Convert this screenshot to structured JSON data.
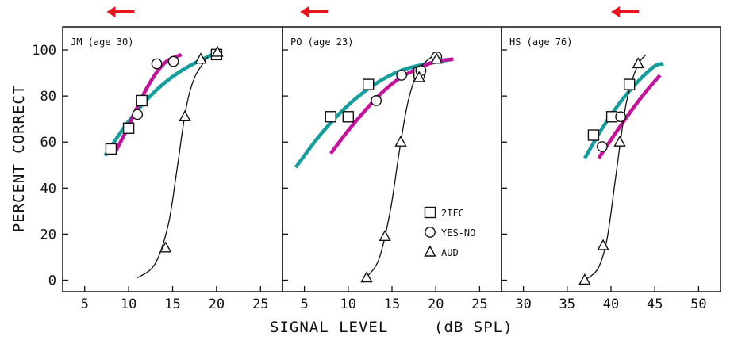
{
  "chart_data": {
    "type": "line",
    "ylabel": "PERCENT CORRECT",
    "xlabel": "SIGNAL LEVEL",
    "xunit": "(dB SPL)",
    "ylim": [
      -5,
      110
    ],
    "yticks": [
      0,
      20,
      40,
      60,
      80,
      100
    ],
    "colors": {
      "teal": "#149e9e",
      "magenta": "#c4129a",
      "arrow": "#e8141e",
      "ink": "#111111"
    },
    "legend": {
      "placement": "inside panel 2, lower-right",
      "entries": [
        {
          "marker": "square",
          "label": "2IFC"
        },
        {
          "marker": "circle",
          "label": "YES-NO"
        },
        {
          "marker": "triangle",
          "label": "AUD"
        }
      ]
    },
    "panels": [
      {
        "label": "JM (age 30)",
        "xlim": [
          2.5,
          27.5
        ],
        "xticks": [
          5,
          10,
          15,
          20,
          25
        ],
        "arrow_x": 7.5,
        "series": [
          {
            "marker": "square",
            "x": [
              8,
              10,
              11.5,
              20
            ],
            "y": [
              57,
              66,
              78,
              98
            ]
          },
          {
            "marker": "circle",
            "x": [
              11,
              13.2,
              15.1
            ],
            "y": [
              72,
              94,
              95
            ]
          },
          {
            "marker": "triangle",
            "x": [
              14.2,
              16.4,
              18.2,
              20.1
            ],
            "y": [
              14,
              71,
              96,
              99
            ]
          },
          {
            "curve": "teal",
            "x": [
              7.3,
              10,
              13,
              16,
              19.5
            ],
            "y": [
              54,
              69,
              82,
              91,
              98
            ]
          },
          {
            "curve": "magenta",
            "x": [
              8.4,
              10,
              12,
              14,
              16
            ],
            "y": [
              55,
              67,
              83,
              94,
              98
            ]
          },
          {
            "curve": "ink",
            "x": [
              11,
              13,
              14.5,
              15.5,
              16.5,
              17.5,
              19
            ],
            "y": [
              1,
              7,
              24,
              48,
              74,
              88,
              97
            ]
          }
        ]
      },
      {
        "label": "PO (age 23)",
        "xlim": [
          2.5,
          27.5
        ],
        "xticks": [
          5,
          10,
          15,
          20,
          25
        ],
        "arrow_x": 4.5,
        "series": [
          {
            "marker": "square",
            "x": [
              8,
              10,
              12.3,
              18.1
            ],
            "y": [
              71,
              71,
              85,
              90
            ]
          },
          {
            "marker": "circle",
            "x": [
              13.2,
              16.1,
              18.3,
              20.1
            ],
            "y": [
              78,
              89,
              91,
              97
            ]
          },
          {
            "marker": "triangle",
            "x": [
              12.1,
              14.2,
              16,
              18.1,
              20.1
            ],
            "y": [
              1,
              19,
              60,
              88,
              96
            ]
          },
          {
            "curve": "teal",
            "x": [
              4,
              7,
              10,
              13,
              16,
              19,
              22
            ],
            "y": [
              49,
              64,
              76,
              85,
              91,
              94,
              96
            ]
          },
          {
            "curve": "magenta",
            "x": [
              8,
              10,
              12,
              14,
              16,
              18,
              20,
              22
            ],
            "y": [
              55,
              65,
              74,
              82,
              88,
              92,
              95,
              96
            ]
          },
          {
            "curve": "ink",
            "x": [
              12,
              13.5,
              14.8,
              15.8,
              16.8,
              18,
              19.5
            ],
            "y": [
              1,
              9,
              30,
              55,
              77,
              91,
              97
            ]
          }
        ]
      },
      {
        "label": "HS (age 76)",
        "xlim": [
          27.5,
          52.5
        ],
        "xticks": [
          30,
          35,
          40,
          45,
          50
        ],
        "arrow_x": 40,
        "series": [
          {
            "marker": "square",
            "x": [
              38,
              40.1,
              42.1
            ],
            "y": [
              63,
              71,
              85
            ]
          },
          {
            "marker": "circle",
            "x": [
              39,
              41.1
            ],
            "y": [
              58,
              71
            ]
          },
          {
            "marker": "triangle",
            "x": [
              37,
              39.1,
              41,
              43.1
            ],
            "y": [
              0,
              15,
              60,
              94
            ]
          },
          {
            "curve": "teal",
            "x": [
              37,
              39,
              41,
              43,
              45,
              46
            ],
            "y": [
              53,
              66,
              77,
              86,
              93,
              94
            ]
          },
          {
            "curve": "magenta",
            "x": [
              38.6,
              40,
              42,
              44,
              45.6
            ],
            "y": [
              53,
              61,
              72,
              82,
              89
            ]
          },
          {
            "curve": "ink",
            "x": [
              37,
              38.5,
              39.5,
              40.3,
              41,
              41.8,
              43,
              44
            ],
            "y": [
              0,
              5,
              17,
              38,
              58,
              78,
              93,
              98
            ]
          }
        ]
      }
    ]
  }
}
